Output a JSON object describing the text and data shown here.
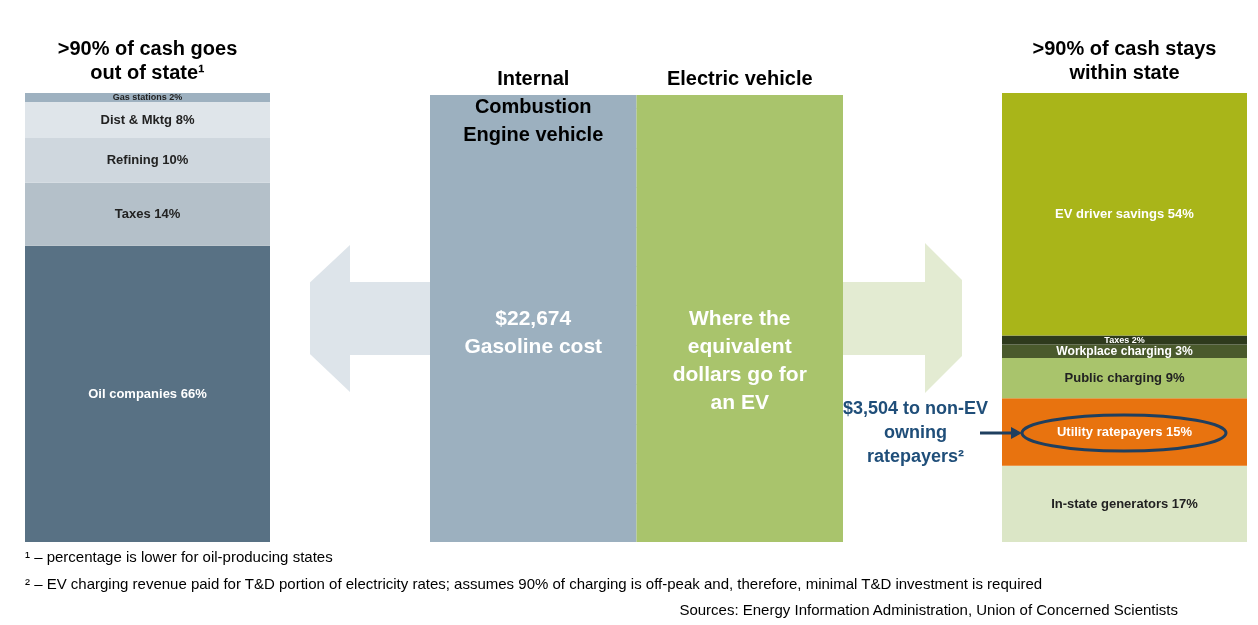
{
  "chart_data": [
    {
      "type": "bar",
      "stacked": true,
      "title": ">90% of cash goes out of state¹",
      "categories": [
        null
      ],
      "series": [
        {
          "name": "Oil companies",
          "color": "#587184",
          "values": [
            66
          ],
          "value_labels": [
            "66%"
          ]
        },
        {
          "name": "Taxes",
          "color": "#b4c0c9",
          "values": [
            14
          ],
          "value_labels": [
            "14%"
          ]
        },
        {
          "name": "Refining",
          "color": "#cfd7de",
          "values": [
            10
          ],
          "value_labels": [
            "10%"
          ]
        },
        {
          "name": "Dist & Mktg",
          "color": "#dfe5ea",
          "values": [
            8
          ],
          "value_labels": [
            "8%"
          ]
        },
        {
          "name": "Gas stations",
          "color": "#9eb1c0",
          "values": [
            2
          ],
          "value_labels": [
            "2%"
          ]
        }
      ]
    },
    {
      "type": "bar",
      "categories": [
        "Internal\nCombustion\nEngine vehicle",
        "Electric vehicle"
      ],
      "values": [
        22674,
        22674
      ],
      "colors": [
        "#9cb0bf",
        "#a9c46c"
      ],
      "value_labels": [
        "$22,674\nGasoline cost",
        "Where the\nequivalent\ndollars go for\nan EV"
      ],
      "annotations": [
        "¹ – percentage is lower for oil-producing states",
        "² – EV charging revenue paid for T&D portion of electricity rates; assumes 90% of charging is off-peak and, therefore, minimal T&D investment is required",
        "Sources: Energy Information Administration, Union of Concerned Scientists"
      ]
    },
    {
      "type": "bar",
      "stacked": true,
      "title": ">90% of cash stays within state",
      "categories": [
        null
      ],
      "series": [
        {
          "name": "In-state generators",
          "color": "#dbe6c6",
          "values": [
            17
          ],
          "value_labels": [
            "17%"
          ]
        },
        {
          "name": "Utility ratepayers",
          "color": "#e8730f",
          "values": [
            15
          ],
          "value_labels": [
            "15%"
          ]
        },
        {
          "name": "Public charging",
          "color": "#a9c46c",
          "values": [
            9
          ],
          "value_labels": [
            "9%"
          ]
        },
        {
          "name": "Workplace charging",
          "color": "#4a5a2c",
          "values": [
            3
          ],
          "value_labels": [
            "3%"
          ]
        },
        {
          "name": "Taxes",
          "color": "#2e3a1c",
          "values": [
            2
          ],
          "value_labels": [
            "2%"
          ]
        },
        {
          "name": "EV driver savings",
          "color": "#a9b519",
          "values": [
            54
          ],
          "value_labels": [
            "54%"
          ]
        }
      ],
      "annotations": [
        "$3,504 to non-EV owning ratepayers²"
      ]
    }
  ]
}
